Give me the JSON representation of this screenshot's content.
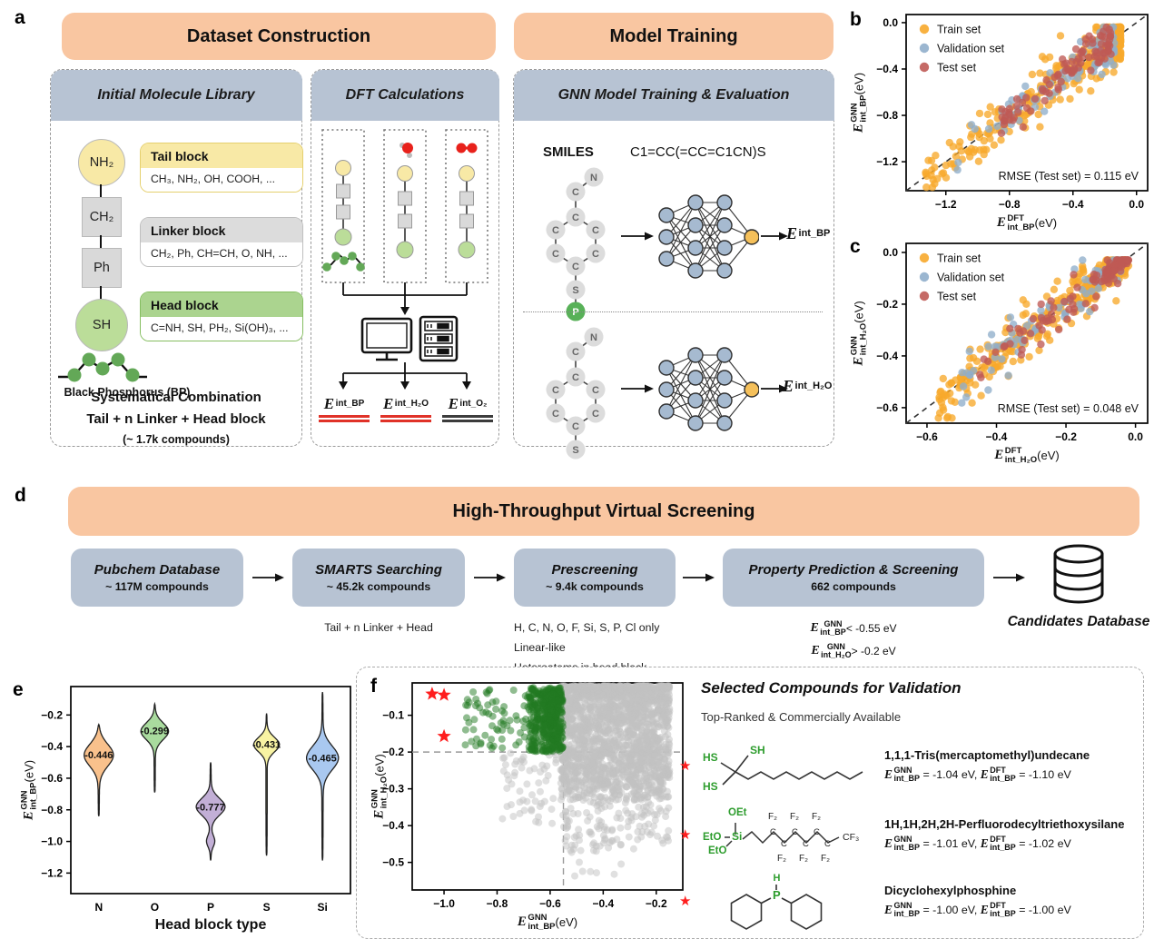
{
  "panel_a": {
    "label": "a",
    "dataset_header": "Dataset Construction",
    "training_header": "Model Training",
    "library": {
      "title": "Initial Molecule Library",
      "chain": [
        {
          "label": "NH₂",
          "shape": "circle",
          "fill": "#F8E9A6"
        },
        {
          "label": "CH₂",
          "shape": "square",
          "fill": "#D9D9D9"
        },
        {
          "label": "Ph",
          "shape": "square",
          "fill": "#D9D9D9"
        },
        {
          "label": "SH",
          "shape": "circle",
          "fill": "#BBDD99"
        }
      ],
      "bp_caption": "Black Phosphorus (BP)",
      "blocks": [
        {
          "title": "Tail block",
          "items": "CH₃, NH₂, OH, COOH, ...",
          "header": "#F8E9A6",
          "border": "#E5D06E"
        },
        {
          "title": "Linker block",
          "items": "CH₂, Ph, CH=CH, O, NH, ...",
          "header": "#DCDCDC",
          "border": "#BFBFBF"
        },
        {
          "title": "Head block",
          "items": "C=NH, SH, PH₂, Si(OH)₃, ...",
          "header": "#ABD48F",
          "border": "#85BE60"
        }
      ],
      "combo1": "Systematical Combination",
      "combo2": "Tail + n Linker + Head block",
      "combo3": "(~ 1.7k compounds)"
    },
    "dft": {
      "title": "DFT Calculations",
      "outputs": [
        {
          "base": "E",
          "sub": "int_BP",
          "underline": "#E03228"
        },
        {
          "base": "E",
          "sub": "int_H₂O",
          "underline": "#E03228"
        },
        {
          "base": "E",
          "sub": "int_O₂",
          "underline": "#3C3C3C"
        }
      ]
    },
    "gnn": {
      "title": "GNN Model Training & Evaluation",
      "smiles_label": "SMILES",
      "smiles": "C1=CC(=CC=C1CN)S",
      "mol1_atoms": [
        "N",
        "C",
        "C",
        "C",
        "C",
        "C",
        "C",
        "C",
        "S",
        "P"
      ],
      "mol2_atoms": [
        "N",
        "C",
        "C",
        "C",
        "C",
        "C",
        "C",
        "C",
        "S"
      ],
      "out1": {
        "base": "E",
        "sub": "int_BP"
      },
      "out2": {
        "base": "E",
        "sub": "int_H₂O"
      }
    }
  },
  "panel_d": {
    "label": "d",
    "header": "High-Throughput Virtual Screening",
    "steps": [
      {
        "title": "Pubchem Database",
        "count": "~ 117M compounds",
        "notes": []
      },
      {
        "title": "SMARTS Searching",
        "count": "~ 45.2k compounds",
        "notes": [
          "Tail + n Linker + Head"
        ]
      },
      {
        "title": "Prescreening",
        "count": "~ 9.4k compounds",
        "notes": [
          "H, C, N, O, F, Si, S, P, Cl only",
          "Linear-like",
          "Heteroatoms in head block"
        ]
      },
      {
        "title": "Property Prediction & Screening",
        "count": "662 compounds",
        "notes": []
      }
    ],
    "step4_criteria": [
      {
        "base": "E",
        "sup": "GNN",
        "sub": "int_BP",
        "rest": " < -0.55 eV"
      },
      {
        "base": "E",
        "sup": "GNN",
        "sub": "int_H₂O",
        "rest": " > -0.2 eV"
      }
    ],
    "database_label": "Candidates Database"
  },
  "panel_f_right": {
    "title": "Selected Compounds for Validation",
    "subtitle": "Top-Ranked & Commercially Available",
    "gnn_parts": {
      "base": "E",
      "sup": "GNN",
      "sub": "int_BP"
    },
    "dft_parts": {
      "base": "E",
      "sup": "DFT",
      "sub": "int_BP"
    },
    "compounds": [
      {
        "name": "1,1,1-Tris(mercaptomethyl)undecane",
        "gnn_val": "-1.04 eV",
        "dft_val": "-1.10 eV",
        "struct": {
          "l1": "HS",
          "l2": "SH",
          "l3": "HS"
        }
      },
      {
        "name": "1H,1H,2H,2H-Perfluorodecyltriethoxysilane",
        "gnn_val": "-1.01 eV",
        "dft_val": "-1.02 eV",
        "struct": {
          "oet": "OEt",
          "eto1": "EtO",
          "eto2": "EtO",
          "si": "Si",
          "c": "C",
          "f2": "F₂",
          "cf3": "CF₃"
        }
      },
      {
        "name": "Dicyclohexylphosphine",
        "gnn_val": "-1.00 eV",
        "dft_val": "-1.00 eV",
        "struct": {
          "p": "P",
          "h": "H"
        }
      }
    ]
  },
  "chart_data": [
    {
      "id": "b",
      "type": "scatter",
      "panel_label": "b",
      "xlabel": {
        "base": "E",
        "sup": "DFT",
        "sub": "int_BP",
        "unit": " (eV)"
      },
      "ylabel": {
        "base": "E",
        "sup": "GNN",
        "sub": "int_BP",
        "unit": " (eV)"
      },
      "xlim": [
        -1.45,
        0.07
      ],
      "ylim": [
        -1.45,
        0.07
      ],
      "xticks": [
        -1.2,
        -0.8,
        -0.4,
        0.0
      ],
      "yticks": [
        0.0,
        -0.4,
        -0.8,
        -1.2
      ],
      "diagonal": true,
      "annotation": "RMSE (Test set) = 0.115 eV",
      "legend": [
        {
          "label": "Train set",
          "color": "#F7A92B"
        },
        {
          "label": "Validation set",
          "color": "#90AECB"
        },
        {
          "label": "Test set",
          "color": "#BF5A55"
        }
      ],
      "point_radius": 4.2,
      "alpha": 0.78,
      "yclamp": [
        -1.42,
        -0.04
      ],
      "series": [
        {
          "name": "Train set",
          "color": "#F7A92B",
          "clusters": [
            {
              "kind": "diag",
              "n": 300,
              "x": [
                -1.35,
                -0.1
              ],
              "bias": 2.3,
              "noise": 0.12,
              "seed": 11
            }
          ]
        },
        {
          "name": "Validation set",
          "color": "#90AECB",
          "clusters": [
            {
              "kind": "diag",
              "n": 85,
              "x": [
                -1.15,
                -0.14
              ],
              "bias": 2.1,
              "noise": 0.1,
              "seed": 22
            }
          ]
        },
        {
          "name": "Test set",
          "color": "#BF5A55",
          "clusters": [
            {
              "kind": "diag",
              "n": 95,
              "x": [
                -0.85,
                -0.16
              ],
              "bias": 1.7,
              "noise": 0.07,
              "seed": 33
            }
          ]
        }
      ]
    },
    {
      "id": "c",
      "type": "scatter",
      "panel_label": "c",
      "xlabel": {
        "base": "E",
        "sup": "DFT",
        "sub": "int_H₂O",
        "unit": " (eV)"
      },
      "ylabel": {
        "base": "E",
        "sup": "GNN",
        "sub": "int_H₂O",
        "unit": " (eV)"
      },
      "xlim": [
        -0.66,
        0.035
      ],
      "ylim": [
        -0.66,
        0.035
      ],
      "xticks": [
        -0.6,
        -0.4,
        -0.2,
        0.0
      ],
      "yticks": [
        0.0,
        -0.2,
        -0.4,
        -0.6
      ],
      "diagonal": true,
      "annotation": "RMSE (Test set) = 0.048 eV",
      "legend": [
        {
          "label": "Train set",
          "color": "#F7A92B"
        },
        {
          "label": "Validation set",
          "color": "#90AECB"
        },
        {
          "label": "Test set",
          "color": "#BF5A55"
        }
      ],
      "point_radius": 4.2,
      "alpha": 0.78,
      "yclamp": [
        -0.64,
        -0.03
      ],
      "series": [
        {
          "name": "Train set",
          "color": "#F7A92B",
          "clusters": [
            {
              "kind": "diag",
              "n": 280,
              "x": [
                -0.58,
                -0.03
              ],
              "bias": 1.3,
              "noise": 0.05,
              "seed": 41
            },
            {
              "kind": "diag",
              "n": 90,
              "x": [
                -0.14,
                -0.02
              ],
              "bias": 1.0,
              "noise": 0.022,
              "seed": 42
            }
          ]
        },
        {
          "name": "Validation set",
          "color": "#90AECB",
          "clusters": [
            {
              "kind": "diag",
              "n": 70,
              "x": [
                -0.5,
                -0.04
              ],
              "bias": 1.3,
              "noise": 0.045,
              "seed": 43
            },
            {
              "kind": "diag",
              "n": 20,
              "x": [
                -0.12,
                -0.03
              ],
              "bias": 1.0,
              "noise": 0.02,
              "seed": 44
            }
          ]
        },
        {
          "name": "Test set",
          "color": "#BF5A55",
          "clusters": [
            {
              "kind": "diag",
              "n": 60,
              "x": [
                -0.45,
                -0.05
              ],
              "bias": 1.2,
              "noise": 0.04,
              "seed": 45
            },
            {
              "kind": "diag",
              "n": 70,
              "x": [
                -0.09,
                -0.02
              ],
              "bias": 1.0,
              "noise": 0.013,
              "seed": 46
            }
          ]
        }
      ]
    },
    {
      "id": "e",
      "type": "violin",
      "panel_label": "e",
      "xlabel": "Head block type",
      "ylabel": {
        "base": "E",
        "sup": "GNN",
        "sub": "int_BP",
        "unit": " (eV)"
      },
      "ylim": [
        -1.33,
        -0.02
      ],
      "yticks": [
        -0.2,
        -0.4,
        -0.6,
        -0.8,
        -1.0,
        -1.2
      ],
      "categories": [
        "N",
        "O",
        "P",
        "S",
        "Si"
      ],
      "violins": [
        {
          "label": "N",
          "color": "#F9C18C",
          "mean_label": "-0.446",
          "top": -0.26,
          "bottom": -0.84,
          "peak": -0.45,
          "sigma": 0.1,
          "wmax": 0.42
        },
        {
          "label": "O",
          "color": "#A9DB9E",
          "mean_label": "-0.299",
          "top": -0.13,
          "bottom": -0.69,
          "peak": -0.3,
          "sigma": 0.075,
          "wmax": 0.4
        },
        {
          "label": "P",
          "color": "#C2AFD6",
          "mean_label": "-0.777",
          "top": -0.5,
          "bottom": -1.12,
          "peak": -0.78,
          "sigma": 0.075,
          "wmax": 0.4,
          "extra": {
            "peak": -1.0,
            "sigma": 0.05,
            "w": 0.12
          }
        },
        {
          "label": "S",
          "color": "#F8F3A3",
          "mean_label": "-0.431",
          "top": -0.19,
          "bottom": -1.09,
          "peak": -0.385,
          "sigma": 0.065,
          "wmax": 0.4
        },
        {
          "label": "Si",
          "color": "#A9C8F0",
          "mean_label": "-0.465",
          "top": -0.055,
          "bottom": -1.12,
          "peak": -0.47,
          "sigma": 0.105,
          "wmax": 0.45
        }
      ]
    },
    {
      "id": "f",
      "type": "scatter",
      "panel_label": "f",
      "xlabel": {
        "base": "E",
        "sup": "GNN",
        "sub": "int_BP",
        "unit": " (eV)"
      },
      "ylabel": {
        "base": "E",
        "sup": "GNN",
        "sub": "int_H₂O",
        "unit": " (eV)"
      },
      "xlim": [
        -1.12,
        -0.1
      ],
      "ylim": [
        -0.575,
        -0.012
      ],
      "xticks": [
        -1.0,
        -0.8,
        -0.6,
        -0.4,
        -0.2
      ],
      "yticks": [
        -0.1,
        -0.2,
        -0.3,
        -0.4,
        -0.5
      ],
      "vline": -0.55,
      "hline": -0.2,
      "point_radius": 4.0,
      "alpha": 0.5,
      "series": [
        {
          "name": "screened-out",
          "color": "#C2C2C2",
          "clusters": [
            {
              "kind": "blob",
              "n": 1700,
              "x": [
                -0.56,
                -0.15
              ],
              "xbias": 1.0,
              "y": [
                -0.33,
                -0.02
              ],
              "ybias": 1.6,
              "seed": 71
            },
            {
              "kind": "blob",
              "n": 260,
              "x": [
                -0.56,
                -0.15
              ],
              "xbias": 1.0,
              "y": [
                -0.47,
                -0.2
              ],
              "ybias": 1.3,
              "seed": 72
            },
            {
              "kind": "blob",
              "n": 70,
              "x": [
                -0.78,
                -0.52
              ],
              "xbias": 1.0,
              "y": [
                -0.4,
                -0.2
              ],
              "ybias": 1.5,
              "seed": 73
            },
            {
              "kind": "blob",
              "n": 18,
              "x": [
                -0.52,
                -0.3
              ],
              "xbias": 1.0,
              "y": [
                -0.545,
                -0.4
              ],
              "ybias": 1.0,
              "seed": 74
            }
          ]
        },
        {
          "name": "candidates",
          "color": "#227A22",
          "clusters": [
            {
              "kind": "blob",
              "n": 300,
              "x": [
                -0.68,
                -0.552
              ],
              "xbias": 1.0,
              "y": [
                -0.2,
                -0.025
              ],
              "ybias": 1.2,
              "seed": 75
            },
            {
              "kind": "blob",
              "n": 160,
              "x": [
                -0.63,
                -0.552
              ],
              "xbias": 1.0,
              "y": [
                -0.2,
                -0.03
              ],
              "ybias": 1.1,
              "seed": 77
            },
            {
              "kind": "blob",
              "n": 70,
              "x": [
                -0.92,
                -0.66
              ],
              "xbias": 0.8,
              "y": [
                -0.19,
                -0.03
              ],
              "ybias": 1.1,
              "seed": 76
            }
          ]
        }
      ],
      "stars": {
        "color": "#FF1E1E",
        "points": [
          [
            -1.045,
            -0.042
          ],
          [
            -1.0,
            -0.045
          ],
          [
            -1.0,
            -0.157
          ]
        ]
      }
    }
  ]
}
